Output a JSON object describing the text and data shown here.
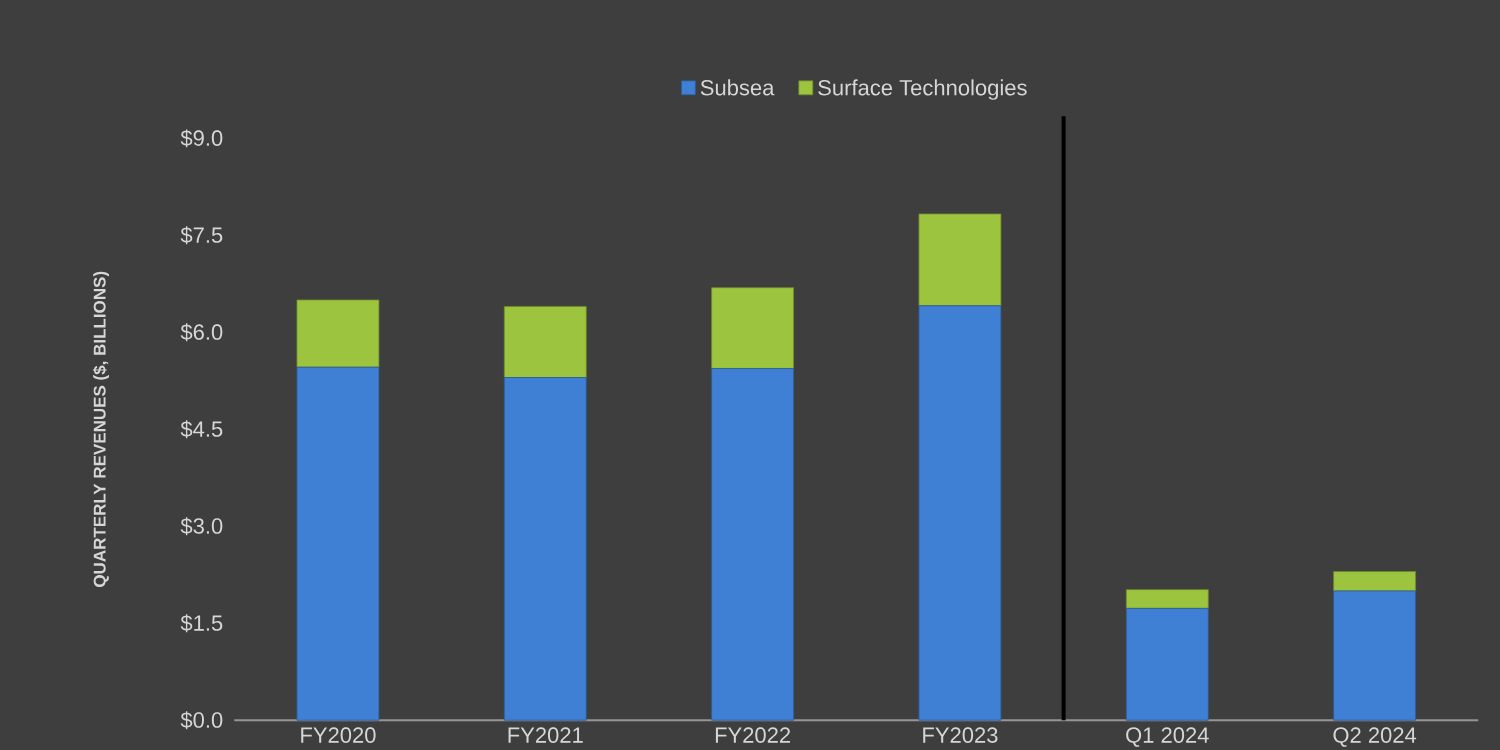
{
  "chart_data": {
    "type": "bar",
    "stacked": true,
    "ylabel": "QUARTERLY REVENUES ($, BILLIONS)",
    "categories": [
      "FY2020",
      "FY2021",
      "FY2022",
      "FY2023",
      "Q1 2024",
      "Q2 2024"
    ],
    "series": [
      {
        "name": "Subsea",
        "color": "#3f80d4",
        "values": [
          5.46,
          5.3,
          5.44,
          6.41,
          1.73,
          2.0
        ]
      },
      {
        "name": "Surface Technologies",
        "color": "#9cc43e",
        "values": [
          1.04,
          1.1,
          1.25,
          1.42,
          0.29,
          0.3
        ]
      }
    ],
    "ylim": [
      0,
      9.0
    ],
    "yticks": [
      {
        "value": 0,
        "label": "$0.0"
      },
      {
        "value": 1.5,
        "label": "$1.5"
      },
      {
        "value": 3.0,
        "label": "$3.0"
      },
      {
        "value": 4.5,
        "label": "$4.5"
      },
      {
        "value": 6.0,
        "label": "$6.0"
      },
      {
        "value": 7.5,
        "label": "$7.5"
      },
      {
        "value": 9.0,
        "label": "$9.0"
      }
    ],
    "legend": "top"
  }
}
